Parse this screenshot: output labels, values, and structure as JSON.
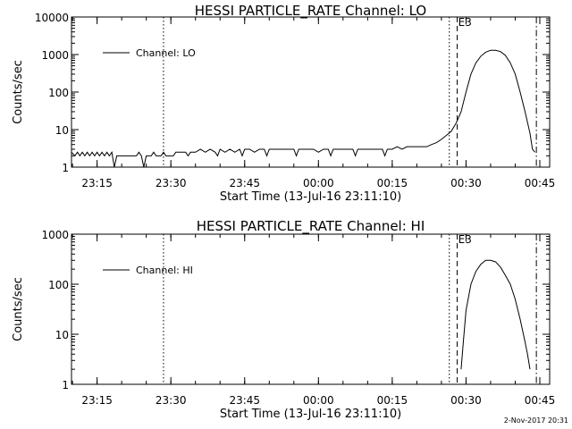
{
  "footer": {
    "timestamp": "2-Nov-2017 20:31"
  },
  "chart_data": [
    {
      "type": "line",
      "title": "HESSI PARTICLE_RATE Channel: LO",
      "xlabel": "Start Time (13-Jul-16 23:11:10)",
      "ylabel": "Counts/sec",
      "yscale": "log",
      "ylim": [
        1,
        10000
      ],
      "yticks": [
        1,
        10,
        100,
        1000,
        10000
      ],
      "ytick_labels": [
        "1",
        "10",
        "100",
        "1000",
        "10000"
      ],
      "xunit": "minutes after 23:11:10",
      "xlim": [
        -1.2,
        96
      ],
      "xticks": [
        4,
        19,
        34,
        49,
        64,
        79,
        94
      ],
      "xtick_labels": [
        "23:15",
        "23:30",
        "23:45",
        "00:00",
        "00:15",
        "00:30",
        "00:45"
      ],
      "grid": false,
      "legend": {
        "position": "top-left",
        "entries": [
          "Channel: LO"
        ]
      },
      "markers": [
        {
          "style": "dotted",
          "x": 17.5
        },
        {
          "style": "dotted",
          "x": 75.6
        },
        {
          "style": "dashed",
          "x": 77.2
        },
        {
          "style": "dashdot",
          "x": 93.3
        }
      ],
      "annotation": {
        "text": "E3",
        "x": 77.4
      },
      "series": [
        {
          "name": "Channel: LO",
          "x": [
            -1.2,
            -0.5,
            0,
            0.5,
            1,
            1.5,
            2,
            2.5,
            3,
            3.5,
            4,
            4.5,
            5,
            5.5,
            6,
            6.5,
            7,
            7.5,
            8,
            8.5,
            9,
            9.5,
            10,
            10.5,
            11,
            11.5,
            12,
            12.5,
            13,
            13.5,
            14,
            14.5,
            15,
            15.5,
            16,
            16.5,
            17,
            17.5,
            18,
            18.5,
            19,
            19.5,
            20,
            21,
            22,
            22.5,
            23,
            24,
            25,
            26,
            27,
            28,
            28.5,
            29,
            30,
            31,
            32,
            33,
            33.5,
            34,
            35,
            36,
            37,
            38,
            38.5,
            39,
            40,
            41,
            42,
            43,
            44,
            44.5,
            45,
            46,
            47,
            48,
            49,
            50,
            51,
            51.5,
            52,
            53,
            54,
            55,
            56,
            56.5,
            57,
            58,
            59,
            60,
            61,
            62,
            62.5,
            63,
            64,
            65,
            66,
            67,
            68,
            69,
            70,
            71,
            72,
            73,
            74,
            75,
            76,
            77,
            78,
            79,
            80,
            81,
            82,
            83,
            84,
            85,
            86,
            87,
            88,
            89,
            90,
            91,
            92,
            92.5,
            93
          ],
          "y": [
            2.5,
            2.0,
            2.5,
            2.0,
            2.5,
            2.0,
            2.5,
            2.0,
            2.5,
            2.0,
            2.5,
            2.0,
            2.5,
            2.0,
            2.5,
            2.0,
            2.5,
            1.0,
            2.0,
            2.0,
            2.0,
            2.0,
            2.0,
            2.0,
            2.0,
            2.0,
            2.0,
            2.5,
            2.0,
            1.0,
            2.0,
            2.0,
            2.0,
            2.5,
            2.0,
            2.0,
            2.0,
            2.5,
            2.0,
            2.0,
            2.0,
            2.0,
            2.5,
            2.5,
            2.5,
            2.0,
            2.5,
            2.5,
            3.0,
            2.5,
            3.0,
            2.5,
            2.0,
            3.0,
            2.5,
            3.0,
            2.5,
            3.0,
            2.0,
            3.0,
            3.0,
            2.5,
            3.0,
            3.0,
            2.0,
            3.0,
            3.0,
            3.0,
            3.0,
            3.0,
            3.0,
            2.0,
            3.0,
            3.0,
            3.0,
            3.0,
            2.5,
            3.0,
            3.0,
            2.0,
            3.0,
            3.0,
            3.0,
            3.0,
            3.0,
            2.0,
            3.0,
            3.0,
            3.0,
            3.0,
            3.0,
            3.0,
            2.0,
            3.0,
            3.0,
            3.5,
            3.0,
            3.5,
            3.5,
            3.5,
            3.5,
            3.5,
            4.0,
            4.5,
            5.5,
            7.0,
            9.0,
            15.0,
            30.0,
            100.0,
            300.0,
            600.0,
            900.0,
            1150.0,
            1300.0,
            1300.0,
            1200.0,
            950.0,
            600.0,
            300.0,
            100.0,
            30.0,
            8.0,
            3.0,
            2.5
          ]
        }
      ]
    },
    {
      "type": "line",
      "title": "HESSI PARTICLE_RATE Channel: HI",
      "xlabel": "Start Time (13-Jul-16 23:11:10)",
      "ylabel": "Counts/sec",
      "yscale": "log",
      "ylim": [
        1,
        1000
      ],
      "yticks": [
        1,
        10,
        100,
        1000
      ],
      "ytick_labels": [
        "1",
        "10",
        "100",
        "1000"
      ],
      "xunit": "minutes after 23:11:10",
      "xlim": [
        -1.2,
        96
      ],
      "xticks": [
        4,
        19,
        34,
        49,
        64,
        79,
        94
      ],
      "xtick_labels": [
        "23:15",
        "23:30",
        "23:45",
        "00:00",
        "00:15",
        "00:30",
        "00:45"
      ],
      "grid": false,
      "legend": {
        "position": "top-left",
        "entries": [
          "Channel: HI"
        ]
      },
      "markers": [
        {
          "style": "dotted",
          "x": 17.5
        },
        {
          "style": "dotted",
          "x": 75.6
        },
        {
          "style": "dashed",
          "x": 77.2
        },
        {
          "style": "dashdot",
          "x": 93.3
        }
      ],
      "annotation": {
        "text": "E3",
        "x": 77.4
      },
      "series": [
        {
          "name": "Channel: HI",
          "x": [
            78.0,
            78.5,
            79.0,
            80.0,
            81.0,
            82.0,
            83.0,
            84.0,
            85.0,
            86.0,
            87.0,
            88.0,
            89.0,
            90.0,
            91.0,
            91.5,
            92.0
          ],
          "y": [
            2.0,
            8.0,
            30.0,
            100.0,
            180.0,
            250.0,
            300.0,
            300.0,
            280.0,
            220.0,
            150.0,
            100.0,
            50.0,
            20.0,
            7.0,
            4.0,
            2.0
          ]
        }
      ]
    }
  ]
}
